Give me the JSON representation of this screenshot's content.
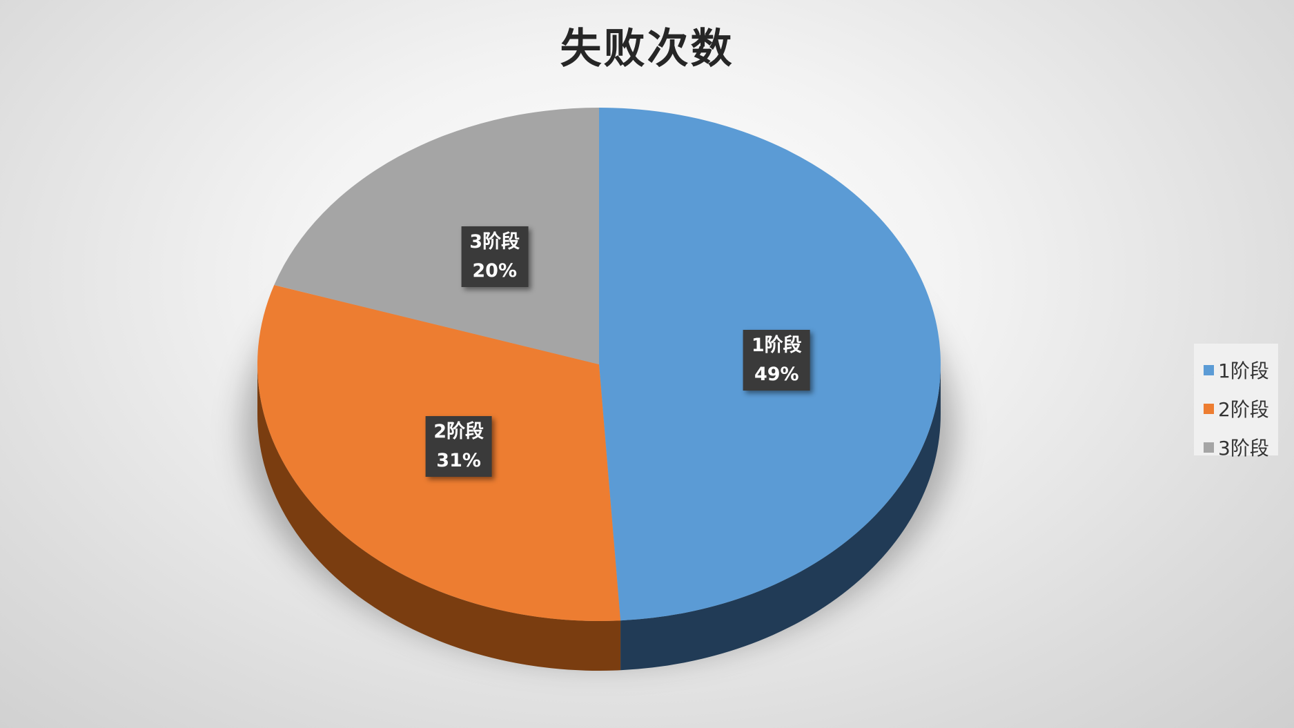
{
  "chart_data": {
    "type": "pie",
    "title": "失败次数",
    "categories": [
      "1阶段",
      "2阶段",
      "3阶段"
    ],
    "values": [
      49,
      31,
      20
    ],
    "value_labels": [
      "49%",
      "31%",
      "20%"
    ],
    "colors": [
      "#5b9bd5",
      "#ed7d31",
      "#a5a5a5"
    ],
    "side_colors": [
      "#213b56",
      "#7a3d10",
      "#555555"
    ],
    "legend": "right",
    "style": "3d"
  }
}
